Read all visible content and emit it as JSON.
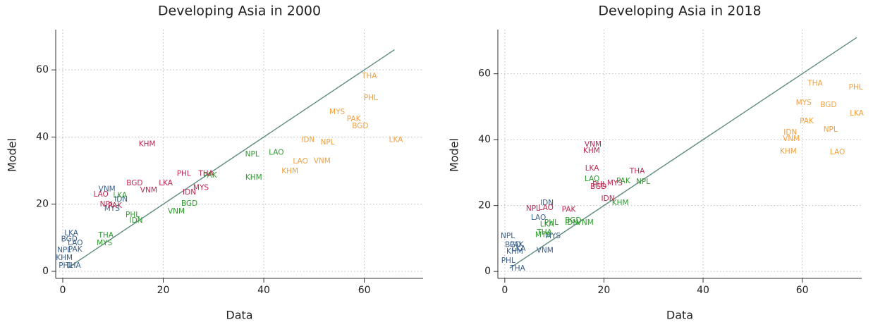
{
  "chart_data": [
    {
      "type": "scatter",
      "title": "Developing Asia in 2000",
      "x_label": "Data",
      "y_label": "Model",
      "xlim": [
        -1.4,
        71.7
      ],
      "ylim": [
        -2.1,
        72
      ],
      "xticks": [
        0,
        20,
        40,
        60
      ],
      "yticks": [
        0,
        20,
        40,
        60
      ],
      "grid": true,
      "fit_line": {
        "color": "#5f8b80",
        "x": [
          1,
          66
        ],
        "y": [
          1,
          66
        ]
      },
      "series": [
        {
          "color": "#3b5f8a",
          "labels": [
            "LKA",
            "BGD",
            "LAO",
            "NPL",
            "PAK",
            "KHM",
            "PHL",
            "THA",
            "VNM",
            "IDN",
            "MYS"
          ],
          "x": [
            1.7,
            1.3,
            2.5,
            0.3,
            2.5,
            0.3,
            0.6,
            2.1,
            8.8,
            11.6,
            9.8
          ],
          "values": [
            11.3,
            9.6,
            8.4,
            6.3,
            6.5,
            4.0,
            1.7,
            1.7,
            24.5,
            21.4,
            18.7
          ]
        },
        {
          "color": "#2e9a2e",
          "labels": [
            "LKA",
            "THA",
            "MYS",
            "PHL",
            "IDN",
            "VNM",
            "BGD",
            "PAK",
            "KHM",
            "NPL",
            "LAO"
          ],
          "x": [
            11.4,
            8.6,
            8.3,
            13.9,
            14.6,
            22.6,
            25.2,
            29.3,
            38.0,
            37.7,
            42.5
          ],
          "values": [
            22.6,
            10.7,
            8.4,
            16.8,
            15.1,
            17.8,
            20.1,
            28.5,
            27.9,
            34.8,
            35.4
          ]
        },
        {
          "color": "#c0264f",
          "labels": [
            "KHM",
            "BGD",
            "VNM",
            "LKA",
            "LAO",
            "NPL",
            "PAK",
            "PHL",
            "THA",
            "MYS",
            "IDN"
          ],
          "x": [
            16.8,
            14.3,
            17.1,
            20.5,
            7.6,
            8.8,
            10.4,
            24.1,
            28.5,
            27.5,
            25.2
          ],
          "values": [
            37.9,
            26.2,
            24.1,
            26.2,
            22.9,
            19.9,
            19.5,
            29.1,
            29.1,
            24.9,
            23.5
          ]
        },
        {
          "color": "#f0a040",
          "labels": [
            "THA",
            "PHL",
            "MYS",
            "PAK",
            "BGD",
            "LKA",
            "IDN",
            "NPL",
            "LAO",
            "VNM",
            "KHM"
          ],
          "x": [
            61.0,
            61.3,
            54.6,
            57.9,
            59.2,
            66.3,
            48.8,
            52.7,
            47.3,
            51.6,
            45.2
          ],
          "values": [
            58.1,
            51.6,
            47.4,
            45.3,
            43.2,
            39.2,
            39.2,
            38.4,
            32.7,
            32.9,
            29.8
          ]
        }
      ]
    },
    {
      "type": "scatter",
      "title": "Developing Asia in 2018",
      "x_label": "Data",
      "y_label": "Model",
      "xlim": [
        -1.4,
        72
      ],
      "ylim": [
        -2.1,
        73.4
      ],
      "xticks": [
        0,
        20,
        40,
        60
      ],
      "yticks": [
        0,
        20,
        40,
        60
      ],
      "grid": true,
      "fit_line": {
        "color": "#5f8b80",
        "x": [
          1,
          71
        ],
        "y": [
          1,
          71
        ]
      },
      "series": [
        {
          "color": "#3b5f8a",
          "labels": [
            "NPL",
            "BGD",
            "PAK",
            "LKA",
            "KHM",
            "PHL",
            "THA",
            "IDN",
            "LAO",
            "MYS",
            "VNM"
          ],
          "x": [
            0.6,
            1.7,
            2.4,
            2.8,
            2.0,
            0.7,
            2.6,
            8.5,
            6.8,
            9.7,
            8.1
          ],
          "values": [
            10.7,
            8.1,
            8.1,
            6.9,
            6.0,
            3.2,
            0.9,
            20.8,
            16.3,
            10.7,
            6.4
          ]
        },
        {
          "color": "#2e9a2e",
          "labels": [
            "LAO",
            "PAK",
            "NPL",
            "KHM",
            "BGD",
            "IDN",
            "VNM",
            "LKA",
            "PHL",
            "THA",
            "MYS"
          ],
          "x": [
            17.6,
            23.9,
            27.9,
            23.3,
            13.8,
            13.5,
            16.2,
            8.5,
            9.4,
            8.0,
            7.7
          ],
          "values": [
            28.1,
            27.4,
            27.2,
            20.8,
            15.4,
            14.8,
            14.8,
            14.3,
            14.8,
            11.8,
            11.1
          ]
        },
        {
          "color": "#c0264f",
          "labels": [
            "VNM",
            "KHM",
            "LKA",
            "THA",
            "MYS",
            "BGD",
            "PAK",
            "NPL",
            "LAO",
            "IDN",
            "PHL"
          ],
          "x": [
            17.8,
            17.5,
            17.6,
            26.7,
            22.2,
            18.9,
            12.9,
            5.7,
            8.3,
            20.8,
            19.1
          ],
          "values": [
            38.5,
            36.6,
            31.3,
            30.4,
            26.8,
            25.7,
            18.8,
            19.1,
            19.3,
            22.1,
            26.3
          ]
        },
        {
          "color": "#f0a040",
          "labels": [
            "THA",
            "PHL",
            "MYS",
            "BGD",
            "LKA",
            "PAK",
            "NPL",
            "IDN",
            "VNM",
            "KHM",
            "LAO"
          ],
          "x": [
            62.6,
            70.8,
            60.3,
            65.3,
            71.0,
            60.9,
            65.7,
            57.6,
            57.8,
            57.2,
            67.1
          ],
          "values": [
            57.0,
            55.9,
            51.2,
            50.5,
            48.0,
            45.6,
            43.0,
            42.2,
            40.3,
            36.4,
            36.2
          ]
        }
      ]
    }
  ]
}
